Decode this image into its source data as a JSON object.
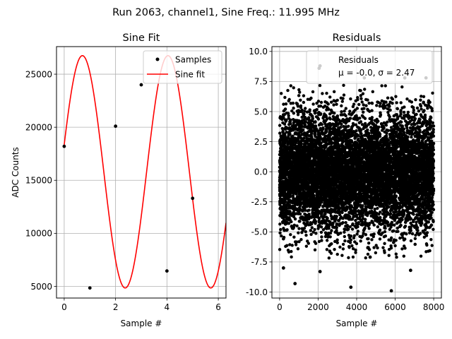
{
  "figure": {
    "suptitle": "Run 2063, channel1, Sine Freq.: 11.995 MHz"
  },
  "colors": {
    "fit": "#ff0000",
    "marker": "#000000",
    "grid": "#b0b0b0",
    "frame": "#000000",
    "legend_border": "#cccccc"
  },
  "chart_data": [
    {
      "type": "line",
      "title": "Sine Fit",
      "xlabel": "Sample #",
      "ylabel": "ADC Counts",
      "xlim": [
        -0.3,
        6.3
      ],
      "ylim": [
        3900,
        27600
      ],
      "xticks": [
        0,
        2,
        4,
        6
      ],
      "yticks": [
        5000,
        10000,
        15000,
        20000,
        25000
      ],
      "grid": true,
      "legend_position": "top-right",
      "series": [
        {
          "name": "Samples",
          "style": "markers",
          "x": [
            0,
            1,
            2,
            3,
            4,
            5
          ],
          "y": [
            18200,
            4850,
            20100,
            24000,
            6450,
            13300
          ]
        },
        {
          "name": "Sine fit",
          "style": "line",
          "model": {
            "offset": 15800,
            "amplitude": 10950,
            "period_samples": 3.3333,
            "phase_rad": 0.2353
          },
          "x_range": [
            0,
            6.3
          ]
        }
      ]
    },
    {
      "type": "scatter",
      "title": "Residuals",
      "xlabel": "Sample #",
      "ylabel": "",
      "xlim": [
        -400,
        8400
      ],
      "ylim": [
        -10.5,
        10.4
      ],
      "xticks": [
        0,
        2000,
        4000,
        6000,
        8000
      ],
      "yticks": [
        -10.0,
        -7.5,
        -5.0,
        -2.5,
        0.0,
        2.5,
        5.0,
        7.5,
        10.0
      ],
      "grid": true,
      "legend_position": "top-right",
      "legend": {
        "line1": "Residuals",
        "line2": "μ = -0.0, σ = 2.47"
      },
      "series": [
        {
          "name": "Residuals",
          "n_points": 8000,
          "mean": -0.0,
          "std": 2.47,
          "notable_points": [
            {
              "x": 2100,
              "y": 8.8
            },
            {
              "x": 2050,
              "y": 8.6
            },
            {
              "x": 3700,
              "y": -9.6
            },
            {
              "x": 5800,
              "y": -9.9
            },
            {
              "x": 800,
              "y": -9.3
            },
            {
              "x": 200,
              "y": -8.0
            },
            {
              "x": 2100,
              "y": -8.3
            },
            {
              "x": 6800,
              "y": -8.2
            },
            {
              "x": 4700,
              "y": -7.1
            },
            {
              "x": 4400,
              "y": 7.8
            },
            {
              "x": 6500,
              "y": 7.8
            },
            {
              "x": 7600,
              "y": 7.8
            }
          ]
        }
      ]
    }
  ]
}
